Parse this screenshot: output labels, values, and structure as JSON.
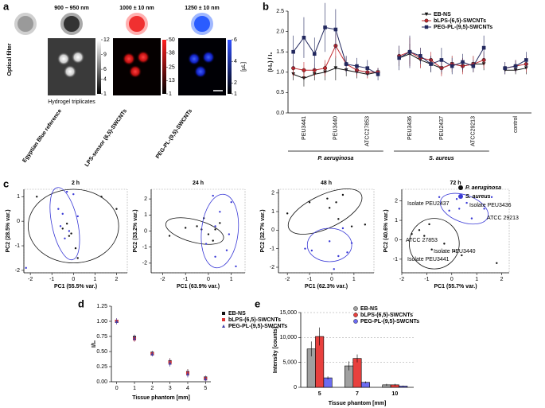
{
  "panel_a": {
    "label": "a",
    "side_label": "Optical filter",
    "filters": [
      "900 – 950 nm",
      "1000 ± 10 nm",
      "1250 ± 10 nm"
    ],
    "colorbars": [
      {
        "ticks": [
          12,
          9,
          6,
          4,
          1
        ]
      },
      {
        "ticks": [
          50,
          38,
          25,
          13,
          1
        ]
      },
      {
        "ticks": [
          6,
          4,
          2,
          1
        ],
        "unit": "[µL]"
      }
    ],
    "image_caption": "Hydrogel triplicates",
    "rows": [
      "Egyptian Blue reference",
      "LPS-sensor (6,5)-SWCNTs",
      "PEG-PL-(9,5)-SWCNTs"
    ]
  },
  "chart_data": [
    {
      "type": "line",
      "label": "b",
      "y_label": "(I-I₀) / I₀",
      "categories": [
        null,
        "PEU3441",
        null,
        null,
        "PEU3440",
        null,
        null,
        "ATCC27853",
        null,
        null,
        null,
        "PEU3436",
        null,
        null,
        "PEU2437",
        null,
        null,
        "ATCC29213",
        null,
        null,
        null,
        "control",
        null
      ],
      "group_labels": [
        "P. aeruginosa",
        "S. aureus"
      ],
      "ylim": [
        0,
        2.5
      ],
      "yticks": [
        {
          "value": 0,
          "label": "0.0"
        },
        {
          "value": 0.5,
          "label": "0.5"
        },
        {
          "value": 1,
          "label": "1.0"
        },
        {
          "value": 1.5,
          "label": "1.5"
        },
        {
          "value": 2,
          "label": "2.0"
        },
        {
          "value": 2.5,
          "label": "2.5"
        }
      ],
      "series": [
        {
          "name": "EB-NS",
          "color": "#111111",
          "marker": "triangle-down",
          "values": [
            0.95,
            0.85,
            0.95,
            1.0,
            1.1,
            1.05,
            1.0,
            0.95,
            1.0,
            null,
            1.35,
            1.45,
            1.3,
            1.2,
            1.1,
            1.2,
            1.15,
            1.2,
            1.2,
            null,
            1.05,
            1.05,
            1.1
          ],
          "errors": [
            0.15,
            0.2,
            0.15,
            0.2,
            0.3,
            0.15,
            0.15,
            0.1,
            0.1,
            null,
            0.2,
            0.25,
            0.2,
            0.2,
            0.15,
            0.2,
            0.15,
            0.2,
            0.15,
            null,
            0.1,
            0.1,
            0.15
          ]
        },
        {
          "name": "bLPS-(6,5)-SWCNTs",
          "color": "#c0272d",
          "marker": "circle",
          "values": [
            1.1,
            1.05,
            1.05,
            1.1,
            1.65,
            1.2,
            1.05,
            1.0,
            1.0,
            null,
            1.4,
            1.5,
            1.35,
            1.3,
            1.1,
            1.2,
            1.15,
            1.2,
            1.3,
            null,
            1.1,
            1.15,
            1.2
          ],
          "errors": [
            0.2,
            0.2,
            0.15,
            0.2,
            0.3,
            0.2,
            0.15,
            0.15,
            0.1,
            null,
            0.25,
            0.35,
            0.25,
            0.2,
            0.2,
            0.2,
            0.2,
            0.2,
            0.2,
            null,
            0.15,
            0.15,
            0.2
          ]
        },
        {
          "name": "PEG-PL-(9,5)-SWCNTs",
          "color": "#22285e",
          "marker": "square",
          "values": [
            1.5,
            1.85,
            1.45,
            2.1,
            2.05,
            1.2,
            1.15,
            1.1,
            0.95,
            null,
            1.35,
            1.5,
            1.4,
            1.2,
            1.3,
            1.15,
            1.25,
            1.15,
            1.6,
            null,
            1.1,
            1.15,
            1.3
          ],
          "errors": [
            0.4,
            0.5,
            0.4,
            0.6,
            0.5,
            0.2,
            0.2,
            0.2,
            0.15,
            null,
            0.3,
            0.4,
            0.2,
            0.2,
            0.3,
            0.2,
            0.2,
            0.15,
            0.3,
            null,
            0.15,
            0.15,
            0.2
          ]
        }
      ]
    },
    {
      "type": "scatter",
      "label": "c",
      "title": "2 h",
      "x_label": "PC1 (55.5% var.)",
      "y_label": "PC2 (28.5% var.)",
      "xlim": [
        -2.3,
        2.5
      ],
      "ylim": [
        -2.1,
        1.3
      ],
      "xticks": [
        -2,
        -1,
        0,
        1,
        2
      ],
      "yticks": [
        -2,
        -1,
        0,
        1
      ],
      "series": [
        {
          "color": "#111111",
          "x": [
            -1.7,
            1.3,
            2.0,
            -0.5,
            -0.3,
            -0.2,
            0.1,
            0.2,
            -0.1
          ],
          "y": [
            1.0,
            1.0,
            0.5,
            -0.3,
            -0.1,
            -0.6,
            -1.1,
            -1.5,
            -0.5
          ],
          "ellipse": {
            "cx": 0,
            "cy": -0.2,
            "rx": 2.1,
            "ry": 1.5,
            "angle": 0
          }
        },
        {
          "color": "#3a3ad6",
          "x": [
            -0.3,
            0,
            -0.5,
            -0.6,
            -0.4,
            -0.2,
            -0.7,
            0.2,
            -2.2
          ],
          "y": [
            1.2,
            1.1,
            0.3,
            -0.2,
            -0.7,
            -0.4,
            0.5,
            0.2,
            -1.9
          ],
          "ellipse": {
            "cx": -0.4,
            "cy": -0.1,
            "rx": 0.6,
            "ry": 1.5,
            "angle": 12
          }
        }
      ]
    },
    {
      "type": "scatter",
      "title": "24 h",
      "x_label": "PC1 (63.9% var.)",
      "y_label": "PC2 (33.2% var.)",
      "xlim": [
        -2.5,
        1.6
      ],
      "ylim": [
        -2.6,
        2.6
      ],
      "xticks": [
        -2,
        -1,
        0,
        1
      ],
      "yticks": [
        -2,
        -1,
        0,
        1,
        2
      ],
      "series": [
        {
          "color": "#111111",
          "x": [
            -1.7,
            -1.0,
            -0.5,
            -0.3,
            0.0,
            0.3,
            -0.2,
            0.2,
            0.5
          ],
          "y": [
            -0.3,
            0.2,
            0.3,
            0.1,
            -0.2,
            0.1,
            0.8,
            -0.6,
            0.5
          ],
          "ellipse": {
            "cx": -0.6,
            "cy": 0,
            "rx": 1.3,
            "ry": 0.7,
            "angle": -15
          }
        },
        {
          "color": "#3a3ad6",
          "x": [
            0.2,
            1.0,
            0.5,
            0.3,
            0.9,
            -0.1,
            1.2,
            0.8,
            0.3
          ],
          "y": [
            2.2,
            1.8,
            1.2,
            0.3,
            -0.2,
            -0.8,
            -2.2,
            -1.2,
            -1.6
          ],
          "ellipse": {
            "cx": 0.5,
            "cy": 0,
            "rx": 0.8,
            "ry": 2.3,
            "angle": -6
          }
        }
      ]
    },
    {
      "type": "scatter",
      "title": "48 h",
      "x_label": "PC1 (62.3% var.)",
      "y_label": "PC2 (32.7% var.)",
      "xlim": [
        -2.4,
        1.9
      ],
      "ylim": [
        -2.3,
        2.2
      ],
      "xticks": [
        -2,
        -1,
        0,
        1
      ],
      "yticks": [
        -2,
        -1,
        0,
        1,
        2
      ],
      "series": [
        {
          "color": "#111111",
          "x": [
            -0.2,
            0.2,
            -0.1,
            0.3,
            -2.0,
            0.9,
            -1.0,
            1.5,
            0.5
          ],
          "y": [
            1.7,
            1.5,
            1.2,
            0.6,
            0.9,
            0.2,
            1.5,
            0.3,
            1.9
          ],
          "ellipse": {
            "cx": -0.3,
            "cy": 1.0,
            "rx": 1.8,
            "ry": 0.9,
            "angle": 25
          }
        },
        {
          "color": "#3a3ad6",
          "x": [
            0.5,
            -0.1,
            -1.2,
            -0.9,
            0.3,
            0.1,
            0.7,
            0.9
          ],
          "y": [
            0.1,
            -0.6,
            -1.0,
            -1.1,
            -1.4,
            -2.1,
            -1.2,
            -0.7
          ],
          "ellipse": {
            "cx": -0.1,
            "cy": -0.8,
            "rx": 1.0,
            "ry": 0.9,
            "angle": 0
          }
        }
      ]
    },
    {
      "type": "scatter",
      "title": "72 h",
      "x_label": "PC1 (55.7% var.)",
      "y_label": "PC2 (40.6% var.)",
      "xlim": [
        -2,
        2.3
      ],
      "ylim": [
        -1.7,
        2.6
      ],
      "xticks": [
        -2,
        -1,
        0,
        1,
        2
      ],
      "yticks": [
        -1,
        0,
        1,
        2
      ],
      "annotations": [
        {
          "text": "Isolate PEU2437",
          "color": "#3a3ad6"
        },
        {
          "text": "Isolate PEU3436",
          "color": "#3a3ad6"
        },
        {
          "text": "ATCC 29213",
          "color": "#3a3ad6"
        },
        {
          "text": "ATCC 27853",
          "color": "#777777"
        },
        {
          "text": "Isolate PEU3440",
          "color": "#777777"
        },
        {
          "text": "Isolate PEU3441",
          "color": "#777777"
        }
      ],
      "series": [
        {
          "name": "P. aeruginosa",
          "color": "#111111",
          "x": [
            -1.3,
            -0.9,
            -1.1,
            -0.3,
            0.1,
            0.4,
            -0.8,
            1.8,
            -1.6
          ],
          "y": [
            0.5,
            0.8,
            0.2,
            -0.2,
            -0.6,
            -0.8,
            -0.5,
            -1.2,
            0.3
          ],
          "ellipse": {
            "cx": -0.7,
            "cy": -0.2,
            "rx": 1.0,
            "ry": 1.3,
            "angle": 0
          }
        },
        {
          "name": "S. aureus",
          "color": "#3a3ad6",
          "x": [
            -0.5,
            0.3,
            0.6,
            1.3,
            0.2,
            -0.1,
            0.8,
            1.6
          ],
          "y": [
            2.2,
            1.6,
            1.9,
            1.6,
            2.1,
            1.5,
            1.1,
            2.2
          ],
          "ellipse": {
            "cx": 0.5,
            "cy": 1.6,
            "rx": 1.0,
            "ry": 0.7,
            "angle": -20
          }
        }
      ]
    },
    {
      "type": "scatter",
      "label": "d",
      "x_label": "Tissue phantom [mm]",
      "y_label": "I/I₀",
      "xlim": [
        -0.3,
        5.3
      ],
      "ylim": [
        0,
        1.25
      ],
      "xticks": [
        0,
        1,
        2,
        3,
        4,
        5
      ],
      "yticks": [
        {
          "value": 0,
          "label": "0.00"
        },
        {
          "value": 0.25,
          "label": "0.25"
        },
        {
          "value": 0.5,
          "label": "0.50"
        },
        {
          "value": 0.75,
          "label": "0.75"
        },
        {
          "value": 1,
          "label": "1.00"
        },
        {
          "value": 1.25,
          "label": "1.25"
        }
      ],
      "series": [
        {
          "name": "EB-NS",
          "color": "#111111",
          "marker": "square",
          "x": [
            0,
            1,
            2,
            3,
            4,
            5
          ],
          "y": [
            1.0,
            0.73,
            0.47,
            0.33,
            0.15,
            0.06
          ],
          "errors": [
            0.05,
            0.05,
            0.04,
            0.06,
            0.06,
            0.04
          ]
        },
        {
          "name": "bLPS-(6,5)-SWCNTs",
          "color": "#d33",
          "marker": "square",
          "x": [
            0,
            1,
            2,
            3,
            4,
            5
          ],
          "y": [
            1.0,
            0.71,
            0.46,
            0.32,
            0.14,
            0.05
          ],
          "errors": [
            0.05,
            0.05,
            0.04,
            0.06,
            0.06,
            0.04
          ]
        },
        {
          "name": "PEG-PL-(9,5)-SWCNTs",
          "color": "#4040a8",
          "marker": "triangle",
          "x": [
            0,
            1,
            2,
            3,
            4,
            5
          ],
          "y": [
            1.0,
            0.72,
            0.46,
            0.31,
            0.13,
            0.05
          ],
          "errors": [
            0.05,
            0.05,
            0.04,
            0.06,
            0.06,
            0.04
          ]
        }
      ]
    },
    {
      "type": "bar",
      "label": "e",
      "x_label": "Tissue phantom [mm]",
      "y_label": "Intensity [counts]",
      "categories": [
        "5",
        "7",
        "10"
      ],
      "ylim": [
        0,
        15000
      ],
      "yticks": [
        0,
        {
          "value": 5000,
          "label": "5,000"
        },
        {
          "value": 10000,
          "label": "10,000"
        },
        {
          "value": 15000,
          "label": "15,000"
        }
      ],
      "grid": true,
      "series": [
        {
          "name": "EB-NS",
          "color": "#a0a0a0",
          "values": [
            7700,
            4300,
            500
          ],
          "errors": [
            1500,
            900,
            200
          ]
        },
        {
          "name": "bLPS-(6,5)-SWCNTs",
          "color": "#e8403e",
          "values": [
            10200,
            5800,
            500
          ],
          "errors": [
            1800,
            800,
            200
          ]
        },
        {
          "name": "PEG-PL-(9,5)-SWCNTs",
          "color": "#6c6cf0",
          "values": [
            1900,
            1000,
            250
          ],
          "errors": [
            300,
            200,
            100
          ]
        }
      ]
    }
  ]
}
